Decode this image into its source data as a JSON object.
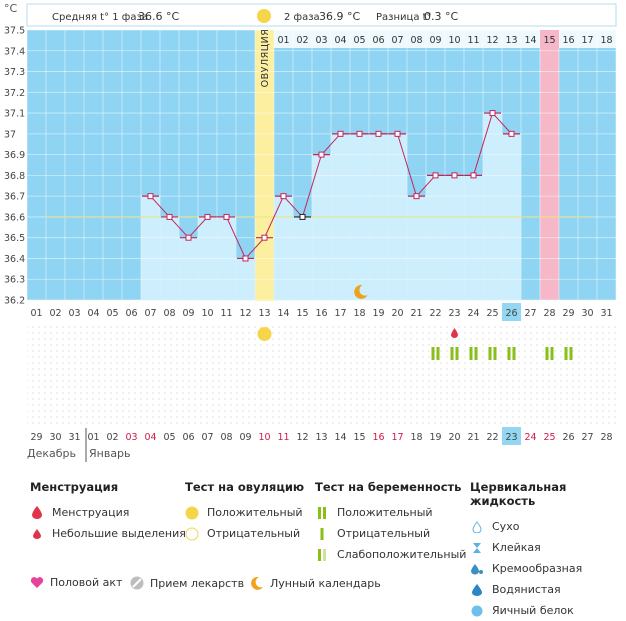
{
  "header": {
    "celsius": "°C",
    "phase1_label": "Средняя t° 1 фаза",
    "phase1_value": "36.6 °C",
    "phase2_label": "2 фаза",
    "phase2_value": "36.9 °C",
    "diff_label": "Разница t°",
    "diff_value": "0.3 °C",
    "ovulation": "ОВУЛЯЦИЯ"
  },
  "colors": {
    "bg_blue": "#8fd5f3",
    "bar_fill": "#cdeefc",
    "ovulation": "#fcefa0",
    "menstruation_marker": "#f6b8c8",
    "line": "#c2255c",
    "coverline": "#e4e88a",
    "accent_day": "#93d7f2"
  },
  "chart_data": {
    "type": "line",
    "ylim": [
      36.2,
      37.5
    ],
    "yticks": [
      "37.5",
      "37.4",
      "37.3",
      "37.2",
      "37.1",
      "37",
      "36.9",
      "36.8",
      "36.7",
      "36.6",
      "36.5",
      "36.4",
      "36.3",
      "36.2"
    ],
    "cycle_days": [
      "",
      "",
      "",
      "",
      "",
      "",
      "",
      "01",
      "02",
      "03",
      "04",
      "05",
      "06",
      "07",
      "08",
      "09",
      "10",
      "11",
      "12",
      "13",
      "14",
      "15",
      "16",
      "17",
      "18"
    ],
    "dates_top": [
      "01",
      "02",
      "03",
      "04",
      "05",
      "06",
      "07",
      "08",
      "09",
      "10",
      "11",
      "12",
      "13",
      "14",
      "15",
      "16",
      "17",
      "18",
      "19",
      "20",
      "21",
      "22",
      "23",
      "24",
      "25",
      "26",
      "27",
      "28",
      "29",
      "30",
      "31"
    ],
    "dates_bottom": [
      "29",
      "30",
      "31",
      "01",
      "02",
      "03",
      "04",
      "05",
      "06",
      "07",
      "08",
      "09",
      "10",
      "11",
      "12",
      "13",
      "14",
      "15",
      "16",
      "17",
      "18",
      "19",
      "20",
      "21",
      "22",
      "23",
      "24",
      "25",
      "26",
      "27",
      "28"
    ],
    "temps": [
      null,
      null,
      null,
      null,
      null,
      null,
      36.7,
      36.6,
      36.5,
      36.6,
      36.6,
      36.4,
      36.5,
      36.7,
      36.6,
      36.9,
      37.0,
      37.0,
      37.0,
      37.0,
      36.7,
      36.8,
      36.8,
      36.8,
      37.1,
      37.0,
      null,
      null,
      null,
      null,
      null
    ],
    "coverline": 36.6,
    "ovulation_index": 12,
    "marker_index": 27,
    "highlight_index": 25,
    "moon_index": 17,
    "drop_index": 22,
    "pregnancy_tests": [
      21,
      22,
      23,
      24,
      25,
      27,
      28
    ]
  },
  "months": {
    "dec": "Декабрь",
    "jan": "Январь"
  },
  "legend": {
    "menstruation": {
      "title": "Менструация",
      "items": [
        "Менструация",
        "Небольшие выделения"
      ]
    },
    "ovulation_test": {
      "title": "Тест на овуляцию",
      "items": [
        "Положительный",
        "Отрицательный"
      ]
    },
    "pregnancy_test": {
      "title": "Тест на беременность",
      "items": [
        "Положительный",
        "Отрицательный",
        "Слабоположительный"
      ]
    },
    "cervical": {
      "title": "Цервикальная жидкость",
      "items": [
        "Сухо",
        "Клейкая",
        "Кремообразная",
        "Водянистая",
        "Яичный белок"
      ]
    },
    "bottom": [
      "Половой акт",
      "Прием лекарств",
      "Лунный календарь"
    ]
  }
}
